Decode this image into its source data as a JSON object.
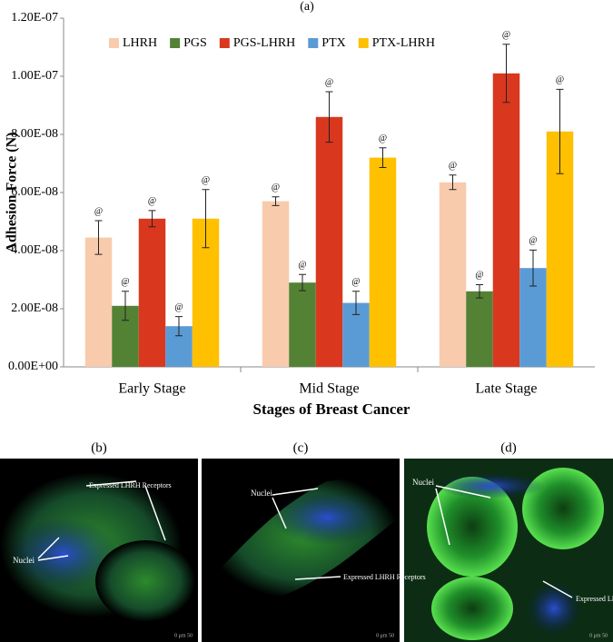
{
  "chart_data": {
    "type": "bar",
    "panel_label": "(a)",
    "y_label": "Adhesion Force (N)",
    "x_label": "Stages of Breast Cancer",
    "categories": [
      "Early Stage",
      "Mid Stage",
      "Late Stage"
    ],
    "series": [
      {
        "name": "LHRH",
        "color": "#f8cbad",
        "values": [
          4.45e-08,
          5.7e-08,
          6.35e-08
        ],
        "errors": [
          5.8e-09,
          1.5e-09,
          2.5e-09
        ]
      },
      {
        "name": "PGS",
        "color": "#548235",
        "values": [
          2.1e-08,
          2.9e-08,
          2.6e-08
        ],
        "errors": [
          5e-09,
          2.8e-09,
          2.3e-09
        ]
      },
      {
        "name": "PGS-LHRH",
        "color": "#d9381e",
        "values": [
          5.1e-08,
          8.6e-08,
          1.01e-07
        ],
        "errors": [
          2.8e-09,
          8.7e-09,
          1e-08
        ]
      },
      {
        "name": "PTX",
        "color": "#5b9bd5",
        "values": [
          1.4e-08,
          2.2e-08,
          3.4e-08
        ],
        "errors": [
          3.3e-09,
          4e-09,
          6.2e-09
        ]
      },
      {
        "name": "PTX-LHRH",
        "color": "#ffc000",
        "values": [
          5.1e-08,
          7.2e-08,
          8.1e-08
        ],
        "errors": [
          1e-08,
          3.4e-09,
          1.45e-08
        ]
      }
    ],
    "significance_marker": "@",
    "ylim": [
      0,
      1.2e-07
    ],
    "yticks": [
      {
        "value": 0,
        "label": "0.00E+00"
      },
      {
        "value": 2e-08,
        "label": "2.00E-08"
      },
      {
        "value": 4e-08,
        "label": "4.00E-08"
      },
      {
        "value": 6e-08,
        "label": "6.00E-08"
      },
      {
        "value": 8e-08,
        "label": "8.00E-08"
      },
      {
        "value": 1e-07,
        "label": "1.00E-07"
      },
      {
        "value": 1.2e-07,
        "label": "1.20E-07"
      }
    ],
    "grid": false,
    "legend": "top"
  },
  "panels": [
    {
      "label": "(b)",
      "annotations": [
        "Expressed LHRH Receptors",
        "Nuclei"
      ],
      "scale": "0   μm   50"
    },
    {
      "label": "(c)",
      "annotations": [
        "Nuclei",
        "Expressed LHRH Receptors"
      ],
      "scale": "0   μm   50"
    },
    {
      "label": "(d)",
      "annotations": [
        "Nuclei",
        "Expressed LHRH Receptors"
      ],
      "scale": "0   μm   50"
    }
  ]
}
